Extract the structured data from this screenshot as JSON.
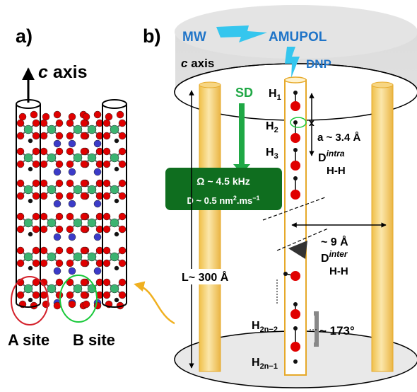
{
  "panel_a": {
    "label": "a)",
    "axis_label_italic": "c",
    "axis_label_rest": " axis",
    "site_a": "A site",
    "site_b": "B site"
  },
  "panel_b": {
    "label": "b)",
    "axis_label_italic": "c",
    "axis_label_rest": " axis",
    "mw": "MW",
    "amupol": "AMUPOL",
    "dnp": "DNP",
    "sd": "SD",
    "omega": "Ω ~ 4.5 kHz",
    "diffusion_prefix": "D ~ 0.5 nm",
    "diffusion_sup": "2",
    "diffusion_suffix": ".ms",
    "diffusion_sup2": "−1",
    "h1": "H",
    "h1_sub": "1",
    "h2": "H",
    "h2_sub": "2",
    "h3": "H",
    "h3_sub": "3",
    "h2n2": "H",
    "h2n2_sub": "2n−2",
    "h2n1": "H",
    "h2n1_sub": "2n−1",
    "x_mark": "x",
    "a_dist": "a ~ 3.4 Å",
    "d_intra_main": "D",
    "d_intra_sup": "intra",
    "d_intra_sub": "H-H",
    "inter_dist": "~ 9 Å",
    "d_inter_main": "D",
    "d_inter_sup": "inter",
    "d_inter_sub": "H-H",
    "length": "L~ 300 Å",
    "angle": "~ 173°"
  },
  "colors": {
    "oxygen": "#e00000",
    "phosphorus": "#3cb371",
    "nitrogen": "#3b3bc8",
    "hydrogen": "#111111",
    "channel_fill": "#f5d88a",
    "channel_stroke": "#e6a92a",
    "sd_green": "#1fa845",
    "box_green": "#0f6e1f",
    "blue_text": "#1f74c8",
    "lightning": "#35c6ee",
    "site_a_ring": "#d4202a",
    "site_b_ring": "#19c93a",
    "arrow_orange": "#f0b020"
  }
}
